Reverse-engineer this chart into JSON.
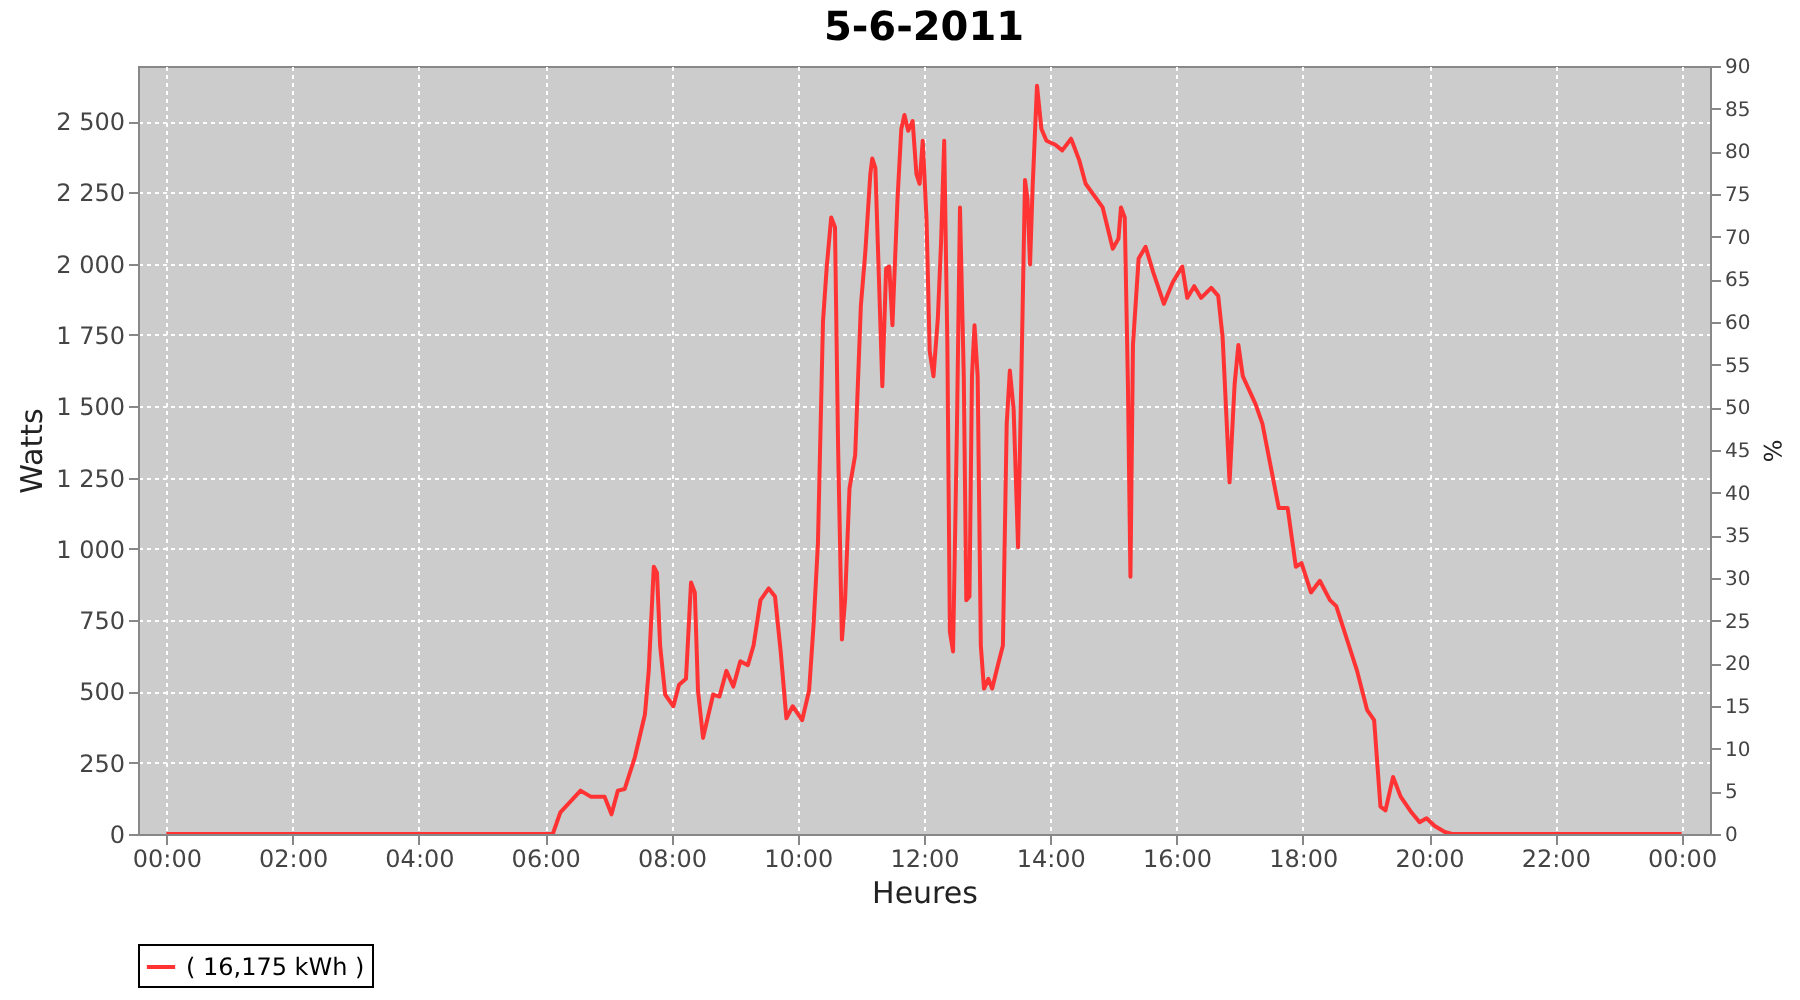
{
  "chart_data": {
    "type": "line",
    "title": "5-6-2011",
    "xlabel": "Heures",
    "ylabel": "Watts",
    "y2label": "%",
    "xlim": [
      -0.45,
      24.45
    ],
    "xticks": [
      {
        "value": 0,
        "label": "00:00"
      },
      {
        "value": 2,
        "label": "02:00"
      },
      {
        "value": 4,
        "label": "04:00"
      },
      {
        "value": 6,
        "label": "06:00"
      },
      {
        "value": 8,
        "label": "08:00"
      },
      {
        "value": 10,
        "label": "10:00"
      },
      {
        "value": 12,
        "label": "12:00"
      },
      {
        "value": 14,
        "label": "14:00"
      },
      {
        "value": 16,
        "label": "16:00"
      },
      {
        "value": 18,
        "label": "18:00"
      },
      {
        "value": 20,
        "label": "20:00"
      },
      {
        "value": 22,
        "label": "22:00"
      },
      {
        "value": 24,
        "label": "00:00"
      }
    ],
    "ylim": [
      0,
      2693
    ],
    "yticks": [
      0,
      250,
      500,
      750,
      {
        "value": 1000,
        "label": "1 000"
      },
      {
        "value": 1250,
        "label": "1 250"
      },
      {
        "value": 1500,
        "label": "1 500"
      },
      {
        "value": 1750,
        "label": "1 750"
      },
      {
        "value": 2000,
        "label": "2 000"
      },
      {
        "value": 2250,
        "label": "2 250"
      },
      {
        "value": 2500,
        "label": "2 500"
      }
    ],
    "y2lim": [
      0,
      90
    ],
    "y2ticks": [
      0,
      5,
      10,
      15,
      20,
      25,
      30,
      35,
      40,
      45,
      50,
      55,
      60,
      65,
      70,
      75,
      80,
      85,
      90
    ],
    "grid": true,
    "legend": "bottom",
    "line_style": "solid",
    "series": [
      {
        "name": "( 16,175 kWh )",
        "color": "#ff3333",
        "x": [
          0,
          6.12,
          6.24,
          6.56,
          6.72,
          6.94,
          7.05,
          7.15,
          7.26,
          7.42,
          7.58,
          7.64,
          7.72,
          7.77,
          7.82,
          7.9,
          8.03,
          8.12,
          8.23,
          8.31,
          8.37,
          8.42,
          8.5,
          8.66,
          8.76,
          8.87,
          8.98,
          9.09,
          9.21,
          9.3,
          9.41,
          9.54,
          9.64,
          9.73,
          9.82,
          9.92,
          10.07,
          10.18,
          10.25,
          10.32,
          10.4,
          10.46,
          10.53,
          10.59,
          10.64,
          10.7,
          10.75,
          10.82,
          10.91,
          11.0,
          11.07,
          11.15,
          11.18,
          11.23,
          11.29,
          11.34,
          11.4,
          11.45,
          11.5,
          11.58,
          11.64,
          11.69,
          11.75,
          11.82,
          11.88,
          11.93,
          11.98,
          12.04,
          12.09,
          12.15,
          12.22,
          12.27,
          12.32,
          12.37,
          12.41,
          12.46,
          12.52,
          12.57,
          12.63,
          12.67,
          12.72,
          12.76,
          12.8,
          12.85,
          12.9,
          12.95,
          13.02,
          13.08,
          13.17,
          13.25,
          13.31,
          13.36,
          13.42,
          13.49,
          13.54,
          13.6,
          13.64,
          13.68,
          13.72,
          13.79,
          13.86,
          13.94,
          14.08,
          14.19,
          14.33,
          14.46,
          14.56,
          14.83,
          14.99,
          15.08,
          15.12,
          15.18,
          15.23,
          15.27,
          15.31,
          15.4,
          15.51,
          15.63,
          15.8,
          15.94,
          16.09,
          16.17,
          16.28,
          16.39,
          16.55,
          16.66,
          16.73,
          16.84,
          16.92,
          16.98,
          17.05,
          17.25,
          17.36,
          17.48,
          17.62,
          17.76,
          17.89,
          17.98,
          18.13,
          18.27,
          18.43,
          18.53,
          18.7,
          18.86,
          19.02,
          19.13,
          19.23,
          19.31,
          19.43,
          19.55,
          19.72,
          19.85,
          19.96,
          20.09,
          20.25,
          20.36,
          24
        ],
        "values": [
          0,
          0,
          76,
          152,
          131,
          131,
          69,
          152,
          158,
          269,
          420,
          572,
          937,
          916,
          661,
          489,
          448,
          523,
          544,
          882,
          847,
          503,
          337,
          489,
          482,
          572,
          517,
          606,
          592,
          661,
          820,
          861,
          833,
          640,
          406,
          448,
          399,
          503,
          730,
          1019,
          1797,
          1990,
          2162,
          2128,
          1350,
          682,
          820,
          1212,
          1329,
          1853,
          2039,
          2314,
          2369,
          2335,
          1921,
          1570,
          1983,
          1990,
          1784,
          2224,
          2472,
          2521,
          2466,
          2500,
          2314,
          2280,
          2431,
          2156,
          1694,
          1605,
          1811,
          2073,
          2431,
          1715,
          709,
          640,
          1398,
          2197,
          1605,
          820,
          833,
          1605,
          1784,
          1605,
          661,
          510,
          544,
          510,
          592,
          661,
          1439,
          1625,
          1488,
          1006,
          1577,
          2293,
          2225,
          1997,
          2266,
          2624,
          2472,
          2431,
          2417,
          2397,
          2438,
          2362,
          2280,
          2197,
          2052,
          2087,
          2197,
          2162,
          1577,
          902,
          1715,
          2018,
          2059,
          1970,
          1859,
          1935,
          1990,
          1880,
          1921,
          1880,
          1915,
          1887,
          1742,
          1233,
          1577,
          1715,
          1605,
          1508,
          1439,
          1302,
          1143,
          1143,
          937,
          950,
          847,
          888,
          820,
          799,
          682,
          572,
          434,
          399,
          96,
          83,
          200,
          131,
          76,
          41,
          55,
          28,
          7,
          0,
          0
        ]
      }
    ]
  }
}
